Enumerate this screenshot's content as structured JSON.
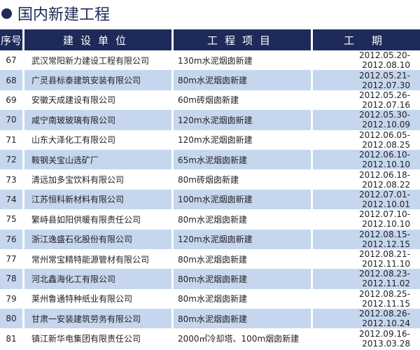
{
  "title": "国内新建工程",
  "headers": [
    "序号",
    "建设单位",
    "工程项目",
    "工 期"
  ],
  "rows": [
    [
      "67",
      "武汉常阳新力建设工程有限公司",
      "130m水泥烟囱新建",
      "2012.05.20-2012.08.10"
    ],
    [
      "68",
      "广灵县标泰建筑安装有限公司",
      "80m水泥烟囱新建",
      "2012.05.21-2012.07.30"
    ],
    [
      "69",
      "安徽天成建设有限公司",
      "60m砖烟囱新建",
      "2012.05.26-2012.07.16"
    ],
    [
      "70",
      "咸宁南玻玻璃有限公司",
      "120m水泥烟囱新建",
      "2012.05.30-2012.10.09"
    ],
    [
      "71",
      "山东大泽化工有限公司",
      "120m水泥烟囱新建",
      "2012.06.05-2012.08.25"
    ],
    [
      "72",
      "鞍钢关宝山选矿厂",
      "65m水泥烟囱新建",
      "2012.06.10-2012.10.10"
    ],
    [
      "73",
      "清远加多宝饮料有限公司",
      "80m砖烟囱新建",
      "2012.06.18-2012.08.22"
    ],
    [
      "74",
      "江苏恒科新材料有限公司",
      "100m水泥烟囱新建",
      "2012.07.01-2012.10.01"
    ],
    [
      "75",
      "繁峙县如阳供暖有限责任公司",
      "80m水泥烟囱新建",
      "2012.07.10-2012.10.10"
    ],
    [
      "76",
      "浙江逸盛石化股份有限公司",
      "120m水泥烟囱新建",
      "2012.08.15-2012.12.15"
    ],
    [
      "77",
      "常州常宝精特能源管材有限公司",
      "80m水泥烟囱新建",
      "2012.08.21-2012.11.10"
    ],
    [
      "78",
      "河北鑫海化工有限公司",
      "80m水泥烟囱新建",
      "2012.08.23-2012.11.02"
    ],
    [
      "79",
      "莱州鲁通特种纸业有限公司",
      "80m水泥烟囱新建",
      "2012.08.25-2012.11.15"
    ],
    [
      "80",
      "甘肃一安装建筑劳务有限公司",
      "80m水泥烟囱新建",
      "2012.08.26-2012.10.24"
    ],
    [
      "81",
      "镇江新华电集团有限责任公司",
      "2000㎡冷却塔、100m烟囱新建",
      "2012.09.16-2013.03.28"
    ]
  ]
}
